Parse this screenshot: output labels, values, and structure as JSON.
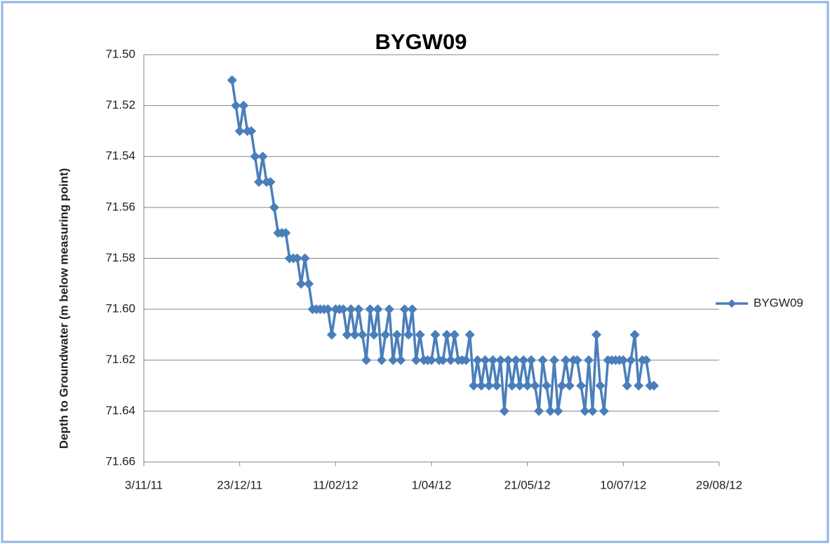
{
  "chart_data": {
    "type": "line",
    "title": "BYGW09",
    "y_label": "Depth to Groundwater (m below measuring point)",
    "y_reversed": true,
    "grid": true,
    "legend": "right",
    "xlim": [
      "2011-11-03",
      "2012-08-29"
    ],
    "xticks": [
      {
        "value": "2011-11-03",
        "label": "3/11/11"
      },
      {
        "value": "2011-12-23",
        "label": "23/12/11"
      },
      {
        "value": "2012-02-11",
        "label": "11/02/12"
      },
      {
        "value": "2012-04-01",
        "label": "1/04/12"
      },
      {
        "value": "2012-05-21",
        "label": "21/05/12"
      },
      {
        "value": "2012-07-10",
        "label": "10/07/12"
      },
      {
        "value": "2012-08-29",
        "label": "29/08/12"
      }
    ],
    "ylim": [
      71.5,
      71.66
    ],
    "yticks": [
      {
        "value": 71.5,
        "label": "71.50"
      },
      71.52,
      71.54,
      71.56,
      71.58,
      {
        "value": 71.6,
        "label": "71.60"
      },
      71.62,
      71.64,
      {
        "value": 71.66,
        "label": "71.66"
      }
    ],
    "x": [
      "2011-12-19",
      "2011-12-21",
      "2011-12-23",
      "2011-12-25",
      "2011-12-27",
      "2011-12-29",
      "2011-12-31",
      "2012-01-02",
      "2012-01-04",
      "2012-01-06",
      "2012-01-08",
      "2012-01-10",
      "2012-01-12",
      "2012-01-14",
      "2012-01-16",
      "2012-01-18",
      "2012-01-20",
      "2012-01-22",
      "2012-01-24",
      "2012-01-26",
      "2012-01-28",
      "2012-01-30",
      "2012-02-01",
      "2012-02-03",
      "2012-02-05",
      "2012-02-07",
      "2012-02-09",
      "2012-02-11",
      "2012-02-13",
      "2012-02-15",
      "2012-02-17",
      "2012-02-19",
      "2012-02-21",
      "2012-02-23",
      "2012-02-25",
      "2012-02-27",
      "2012-02-29",
      "2012-03-02",
      "2012-03-04",
      "2012-03-06",
      "2012-03-08",
      "2012-03-10",
      "2012-03-12",
      "2012-03-14",
      "2012-03-16",
      "2012-03-18",
      "2012-03-20",
      "2012-03-22",
      "2012-03-24",
      "2012-03-26",
      "2012-03-28",
      "2012-03-30",
      "2012-04-01",
      "2012-04-03",
      "2012-04-05",
      "2012-04-07",
      "2012-04-09",
      "2012-04-11",
      "2012-04-13",
      "2012-04-15",
      "2012-04-17",
      "2012-04-19",
      "2012-04-21",
      "2012-04-23",
      "2012-04-25",
      "2012-04-27",
      "2012-04-29",
      "2012-05-01",
      "2012-05-03",
      "2012-05-05",
      "2012-05-07",
      "2012-05-09",
      "2012-05-11",
      "2012-05-13",
      "2012-05-15",
      "2012-05-17",
      "2012-05-19",
      "2012-05-21",
      "2012-05-23",
      "2012-05-25",
      "2012-05-27",
      "2012-05-29",
      "2012-05-31",
      "2012-06-02",
      "2012-06-04",
      "2012-06-06",
      "2012-06-08",
      "2012-06-10",
      "2012-06-12",
      "2012-06-14",
      "2012-06-16",
      "2012-06-18",
      "2012-06-20",
      "2012-06-22",
      "2012-06-24",
      "2012-06-26",
      "2012-06-28",
      "2012-06-30",
      "2012-07-02",
      "2012-07-04",
      "2012-07-06",
      "2012-07-08",
      "2012-07-10",
      "2012-07-12",
      "2012-07-14",
      "2012-07-16",
      "2012-07-18",
      "2012-07-20",
      "2012-07-22",
      "2012-07-24",
      "2012-07-26"
    ],
    "series": [
      {
        "name": "BYGW09",
        "color": "#4a7ebb",
        "values": [
          71.51,
          71.52,
          71.53,
          71.52,
          71.53,
          71.53,
          71.54,
          71.55,
          71.54,
          71.55,
          71.55,
          71.56,
          71.57,
          71.57,
          71.57,
          71.58,
          71.58,
          71.58,
          71.59,
          71.58,
          71.59,
          71.6,
          71.6,
          71.6,
          71.6,
          71.6,
          71.61,
          71.6,
          71.6,
          71.6,
          71.61,
          71.6,
          71.61,
          71.6,
          71.61,
          71.62,
          71.6,
          71.61,
          71.6,
          71.62,
          71.61,
          71.6,
          71.62,
          71.61,
          71.62,
          71.6,
          71.61,
          71.6,
          71.62,
          71.61,
          71.62,
          71.62,
          71.62,
          71.61,
          71.62,
          71.62,
          71.61,
          71.62,
          71.61,
          71.62,
          71.62,
          71.62,
          71.61,
          71.63,
          71.62,
          71.63,
          71.62,
          71.63,
          71.62,
          71.63,
          71.62,
          71.64,
          71.62,
          71.63,
          71.62,
          71.63,
          71.62,
          71.63,
          71.62,
          71.63,
          71.64,
          71.62,
          71.63,
          71.64,
          71.62,
          71.64,
          71.63,
          71.62,
          71.63,
          71.62,
          71.62,
          71.63,
          71.64,
          71.62,
          71.64,
          71.61,
          71.63,
          71.64,
          71.62,
          71.62,
          71.62,
          71.62,
          71.62,
          71.63,
          71.62,
          71.61,
          71.63,
          71.62,
          71.62,
          71.63,
          71.63
        ]
      }
    ]
  }
}
